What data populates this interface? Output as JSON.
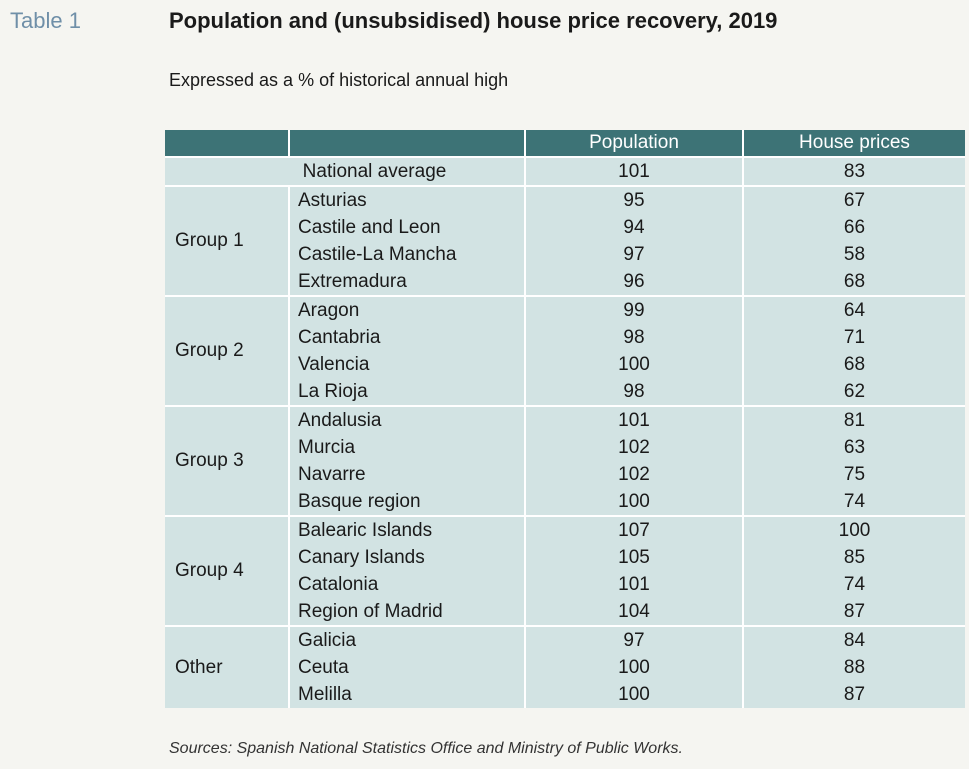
{
  "table_label": "Table 1",
  "title": "Population and (unsubsidised) house price recovery, 2019",
  "subtitle": "Expressed as a % of historical annual high",
  "columns": [
    "",
    "",
    "Population",
    "House prices"
  ],
  "national": {
    "label": "National average",
    "population": "101",
    "house_prices": "83"
  },
  "groups": [
    {
      "name": "Group 1",
      "rows": [
        {
          "region": "Asturias",
          "population": "95",
          "house_prices": "67"
        },
        {
          "region": "Castile and Leon",
          "population": "94",
          "house_prices": "66"
        },
        {
          "region": "Castile-La Mancha",
          "population": "97",
          "house_prices": "58"
        },
        {
          "region": "Extremadura",
          "population": "96",
          "house_prices": "68"
        }
      ]
    },
    {
      "name": "Group 2",
      "rows": [
        {
          "region": "Aragon",
          "population": "99",
          "house_prices": "64"
        },
        {
          "region": "Cantabria",
          "population": "98",
          "house_prices": "71"
        },
        {
          "region": "Valencia",
          "population": "100",
          "house_prices": "68"
        },
        {
          "region": "La Rioja",
          "population": "98",
          "house_prices": "62"
        }
      ]
    },
    {
      "name": "Group 3",
      "rows": [
        {
          "region": "Andalusia",
          "population": "101",
          "house_prices": "81"
        },
        {
          "region": "Murcia",
          "population": "102",
          "house_prices": "63"
        },
        {
          "region": "Navarre",
          "population": "102",
          "house_prices": "75"
        },
        {
          "region": "Basque region",
          "population": "100",
          "house_prices": "74"
        }
      ]
    },
    {
      "name": "Group 4",
      "rows": [
        {
          "region": "Balearic Islands",
          "population": "107",
          "house_prices": "100"
        },
        {
          "region": "Canary Islands",
          "population": "105",
          "house_prices": "85"
        },
        {
          "region": "Catalonia",
          "population": "101",
          "house_prices": "74"
        },
        {
          "region": "Region of Madrid",
          "population": "104",
          "house_prices": "87"
        }
      ]
    },
    {
      "name": "Other",
      "rows": [
        {
          "region": "Galicia",
          "population": "97",
          "house_prices": "84"
        },
        {
          "region": "Ceuta",
          "population": "100",
          "house_prices": "88"
        },
        {
          "region": "Melilla",
          "population": "100",
          "house_prices": "87"
        }
      ]
    }
  ],
  "sources": "Sources: Spanish National Statistics Office and Ministry of Public Works."
}
